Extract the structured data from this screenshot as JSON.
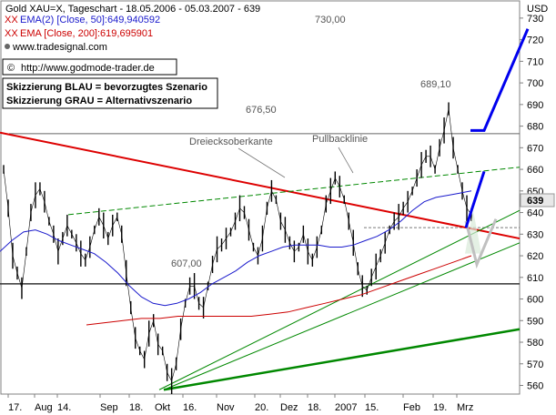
{
  "header": {
    "title": "Gold XAU=X, Tageschart - 18.05.2006 - 05.03.2007 - 639",
    "ema50": "EMA(2) [Close, 50]:649,940592",
    "ema200": "EMA [Close, 200]:619,695901",
    "source": "www.tradesignal.com",
    "website": "http://www.godmode-trader.de",
    "legend_blue": "Skizzierung BLAU = bevorzugtes Szenario",
    "legend_gray": "Skizzierung GRAU = Alternativszenario"
  },
  "annotations": {
    "level_730": "730,00",
    "level_689": "689,10",
    "level_676": "676,50",
    "level_607": "607,00",
    "triangle_edge": "Dreiecksoberkante",
    "pullback": "Pullbacklinie"
  },
  "colors": {
    "price": "#000000",
    "ema50": "#1a1acc",
    "ema200": "#cc0000",
    "triangle_top": "#dd0000",
    "support": "#008800",
    "scenario_blue": "#0000ee",
    "scenario_gray": "#c0c0c0"
  },
  "chart_data": {
    "type": "line",
    "title": "Gold XAU=X, Tageschart - 18.05.2006 - 05.03.2007 - 639",
    "currency": "USD",
    "ylim": [
      556,
      735
    ],
    "yticks": [
      560,
      570,
      580,
      590,
      600,
      610,
      620,
      630,
      640,
      650,
      660,
      670,
      680,
      690,
      700,
      710,
      720,
      730
    ],
    "current_price": 639,
    "x_labels": [
      "17.",
      "Aug",
      "14.",
      "Sep",
      "18.",
      "Okt",
      "16.",
      "Nov",
      "20.",
      "Dez",
      "18.",
      "2007",
      "15.",
      "Feb",
      "19.",
      "Mrz"
    ],
    "horizontal_levels": [
      730,
      676.5,
      607,
      633
    ],
    "series": [
      {
        "name": "Gold XAU=X",
        "values": [
          660,
          642,
          620,
          612,
          605,
          622,
          640,
          648,
          651,
          645,
          636,
          630,
          622,
          628,
          634,
          630,
          626,
          621,
          618,
          624,
          632,
          638,
          634,
          628,
          634,
          638,
          630,
          612,
          596,
          582,
          576,
          572,
          584,
          590,
          579,
          576,
          566,
          562,
          570,
          586,
          598,
          606,
          606,
          598,
          596,
          606,
          616,
          623,
          625,
          628,
          631,
          636,
          642,
          640,
          632,
          624,
          620,
          628,
          642,
          650,
          646,
          636,
          632,
          626,
          622,
          624,
          630,
          622,
          618,
          624,
          632,
          644,
          650,
          656,
          652,
          646,
          636,
          626,
          614,
          606,
          604,
          610,
          615,
          620,
          626,
          632,
          636,
          638,
          642,
          645,
          650,
          656,
          662,
          666,
          666,
          660,
          670,
          678,
          688,
          670,
          660,
          650,
          642,
          639
        ]
      },
      {
        "name": "EMA(2) [Close, 50]",
        "values": [
          622,
          627,
          631,
          632,
          630,
          627,
          625,
          623,
          621,
          617,
          612,
          606,
          601,
          598,
          597,
          598,
          600,
          603,
          607,
          610,
          613,
          617,
          620,
          622,
          624,
          625,
          625,
          625,
          624,
          624,
          625,
          627,
          629,
          632,
          636,
          641,
          645,
          647,
          648,
          649,
          650
        ]
      },
      {
        "name": "EMA [Close, 200]",
        "values": [
          588,
          589,
          590,
          591,
          591,
          592,
          592,
          592,
          592,
          592,
          593,
          594,
          596,
          598,
          600,
          602,
          605,
          608,
          611,
          614,
          617,
          620
        ]
      }
    ]
  }
}
